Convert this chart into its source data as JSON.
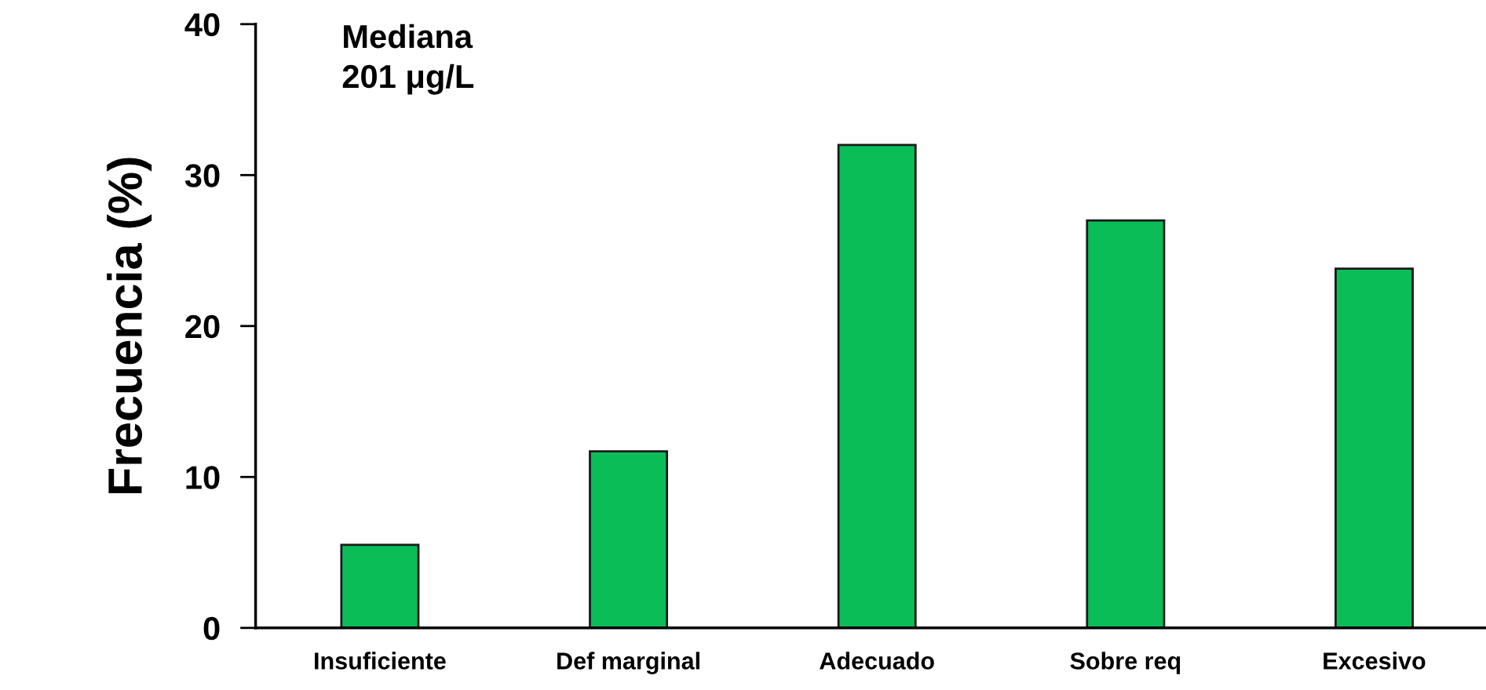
{
  "chart_data": {
    "type": "bar",
    "ylabel": "Frecuencia (%)",
    "categories": [
      "Insuficiente",
      "Def marginal",
      "Adecuado",
      "Sobre req",
      "Excesivo"
    ],
    "values": [
      5.5,
      11.7,
      32.0,
      27.0,
      23.8
    ],
    "color": "#0bbd57",
    "ylim": [
      0,
      40
    ],
    "yticks": [
      0,
      10,
      20,
      30,
      40
    ],
    "grid": false,
    "legend": false,
    "annotations": [
      "Mediana\n201 μg/L"
    ]
  }
}
